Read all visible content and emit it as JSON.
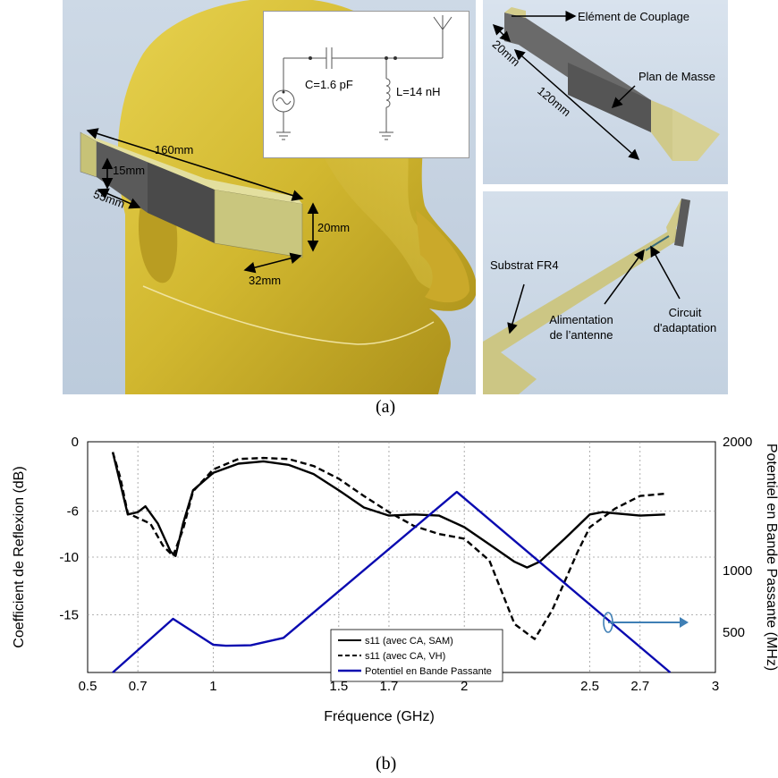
{
  "figure": {
    "panel_a": {
      "caption": "(a)",
      "dims": {
        "d160": "160mm",
        "d15": "15mm",
        "d55": "55mm",
        "d20": "20mm",
        "d32": "32mm"
      },
      "circuit": {
        "capacitor": "C=1.6 pF",
        "inductor": "L=14 nH"
      },
      "top_right": {
        "coupling": "Elément de Couplage",
        "ground": "Plan de Masse",
        "d20": "20mm",
        "d120": "120mm"
      },
      "bottom_right": {
        "substrate": "Substrat FR4",
        "feed_line1": "Alimentation",
        "feed_line2": "de l’antenne",
        "match_line1": "Circuit",
        "match_line2": "d'adaptation"
      }
    },
    "panel_b": {
      "caption": "(b)"
    }
  },
  "chart_data": {
    "type": "line",
    "xlabel": "Fréquence (GHz)",
    "ylabel": "Coefficient de Reflexion (dB)",
    "y2label": "Potentiel en Bande Passante (MHz)",
    "x_ticks": [
      "0.5",
      "0.7",
      "1",
      "1.5",
      "1.7",
      "2",
      "2.5",
      "2.7",
      "3"
    ],
    "y_ticks": [
      "0",
      "-6",
      "-10",
      "-15"
    ],
    "y2_ticks": [
      "2000",
      "1000",
      "500"
    ],
    "grid": true,
    "legend_position": "center-bottom",
    "series": [
      {
        "name": "s11 (avec CA, SAM)",
        "axis": "left",
        "color": "#000000",
        "dash": "solid",
        "points": [
          [
            0.6,
            -0.9
          ],
          [
            0.63,
            -3.6
          ],
          [
            0.66,
            -6.3
          ],
          [
            0.7,
            -6.1
          ],
          [
            0.73,
            -5.6
          ],
          [
            0.78,
            -7.1
          ],
          [
            0.83,
            -9.5
          ],
          [
            0.85,
            -9.9
          ],
          [
            0.88,
            -7.1
          ],
          [
            0.92,
            -4.2
          ],
          [
            1.0,
            -2.7
          ],
          [
            1.1,
            -1.9
          ],
          [
            1.2,
            -1.7
          ],
          [
            1.3,
            -2.0
          ],
          [
            1.4,
            -2.8
          ],
          [
            1.5,
            -4.2
          ],
          [
            1.6,
            -5.7
          ],
          [
            1.7,
            -6.4
          ],
          [
            1.8,
            -6.3
          ],
          [
            1.9,
            -6.4
          ],
          [
            2.0,
            -7.4
          ],
          [
            2.1,
            -8.9
          ],
          [
            2.2,
            -10.4
          ],
          [
            2.25,
            -10.9
          ],
          [
            2.3,
            -10.4
          ],
          [
            2.4,
            -8.4
          ],
          [
            2.5,
            -6.3
          ],
          [
            2.55,
            -6.1
          ],
          [
            2.6,
            -6.2
          ],
          [
            2.7,
            -6.4
          ],
          [
            2.8,
            -6.3
          ]
        ]
      },
      {
        "name": "s11 (avec CA, VH)",
        "axis": "left",
        "color": "#000000",
        "dash": "dashed",
        "points": [
          [
            0.6,
            -0.9
          ],
          [
            0.63,
            -3.1
          ],
          [
            0.66,
            -6.2
          ],
          [
            0.7,
            -6.6
          ],
          [
            0.75,
            -7.1
          ],
          [
            0.8,
            -9.0
          ],
          [
            0.84,
            -9.9
          ],
          [
            0.88,
            -7.6
          ],
          [
            0.92,
            -4.3
          ],
          [
            1.0,
            -2.4
          ],
          [
            1.1,
            -1.5
          ],
          [
            1.2,
            -1.4
          ],
          [
            1.3,
            -1.5
          ],
          [
            1.4,
            -2.1
          ],
          [
            1.5,
            -3.2
          ],
          [
            1.6,
            -4.7
          ],
          [
            1.7,
            -6.1
          ],
          [
            1.8,
            -7.3
          ],
          [
            1.9,
            -8.0
          ],
          [
            2.0,
            -8.4
          ],
          [
            2.1,
            -10.3
          ],
          [
            2.2,
            -15.8
          ],
          [
            2.28,
            -17.1
          ],
          [
            2.35,
            -14.6
          ],
          [
            2.45,
            -9.6
          ],
          [
            2.5,
            -7.4
          ],
          [
            2.6,
            -5.8
          ],
          [
            2.7,
            -4.7
          ],
          [
            2.8,
            -4.5
          ]
        ]
      },
      {
        "name": "Potentiel en Bande Passante",
        "axis": "right",
        "color": "#0a0ab0",
        "dash": "solid",
        "points": [
          [
            0.6,
            0
          ],
          [
            0.84,
            465
          ],
          [
            1.0,
            240
          ],
          [
            1.05,
            232
          ],
          [
            1.15,
            236
          ],
          [
            1.28,
            300
          ],
          [
            1.97,
            1565
          ],
          [
            2.82,
            0
          ]
        ]
      }
    ],
    "annotations": [
      {
        "type": "arrow",
        "text": "",
        "target_axis": "right"
      }
    ]
  }
}
